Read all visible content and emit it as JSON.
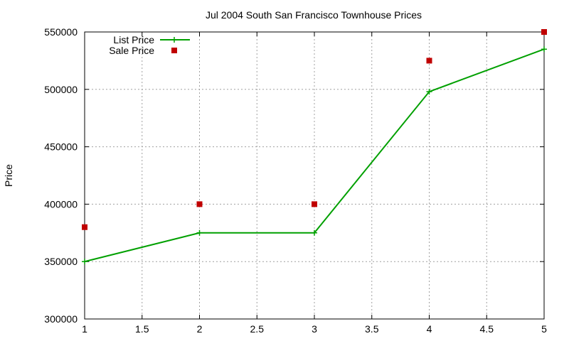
{
  "chart_data": {
    "type": "line",
    "title": "Jul 2004 South San Francisco Townhouse Prices",
    "xlabel": "",
    "ylabel": "Price",
    "xlim": [
      1,
      5
    ],
    "ylim": [
      300000,
      550000
    ],
    "xticks": [
      "1",
      "1.5",
      "2",
      "2.5",
      "3",
      "3.5",
      "4",
      "4.5",
      "5"
    ],
    "xtick_values": [
      1,
      1.5,
      2,
      2.5,
      3,
      3.5,
      4,
      4.5,
      5
    ],
    "yticks": [
      "300000",
      "350000",
      "400000",
      "450000",
      "500000",
      "550000"
    ],
    "ytick_values": [
      300000,
      350000,
      400000,
      450000,
      500000,
      550000
    ],
    "grid": true,
    "legend_position": "top-left",
    "series": [
      {
        "name": "List Price",
        "style": "line-with-plus-markers",
        "color": "#00a000",
        "x": [
          1,
          2,
          3,
          4,
          5
        ],
        "y": [
          350000,
          375000,
          375000,
          498000,
          535000
        ]
      },
      {
        "name": "Sale Price",
        "style": "square-points",
        "color": "#c00000",
        "x": [
          1,
          2,
          3,
          4,
          5
        ],
        "y": [
          380000,
          400000,
          400000,
          525000,
          550000
        ]
      }
    ]
  }
}
